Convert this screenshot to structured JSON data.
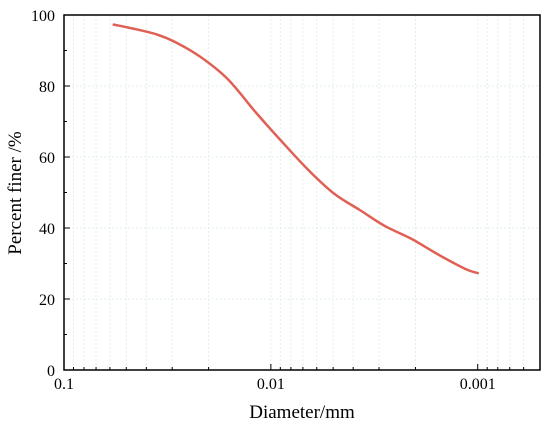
{
  "chart_data": {
    "type": "line",
    "xlabel": "Diameter/mm",
    "ylabel": "Percent finer /%",
    "x_scale": "log",
    "x_reversed": true,
    "xlim": [
      0.1,
      0.0005
    ],
    "ylim": [
      0,
      100
    ],
    "x_ticks": [
      0.1,
      0.01,
      0.001
    ],
    "x_tick_labels": [
      "0.1",
      "0.01",
      "0.001"
    ],
    "y_ticks": [
      0,
      20,
      40,
      60,
      80,
      100
    ],
    "y_tick_labels": [
      "0",
      "20",
      "40",
      "60",
      "80",
      "100"
    ],
    "grid": true,
    "grid_color": "#dff0e6",
    "series": [
      {
        "color": "#e06055",
        "x": [
          0.0575,
          0.045,
          0.0355,
          0.0288,
          0.0219,
          0.0162,
          0.0118,
          0.0089,
          0.0065,
          0.0049,
          0.0037,
          0.0028,
          0.0021,
          0.00155,
          0.00115,
          0.001
        ],
        "y": [
          97.3,
          96.0,
          94.5,
          92.3,
          88.2,
          82.0,
          72.5,
          64.5,
          56.0,
          49.5,
          45.0,
          40.5,
          37.0,
          32.5,
          28.5,
          27.3
        ]
      }
    ]
  }
}
